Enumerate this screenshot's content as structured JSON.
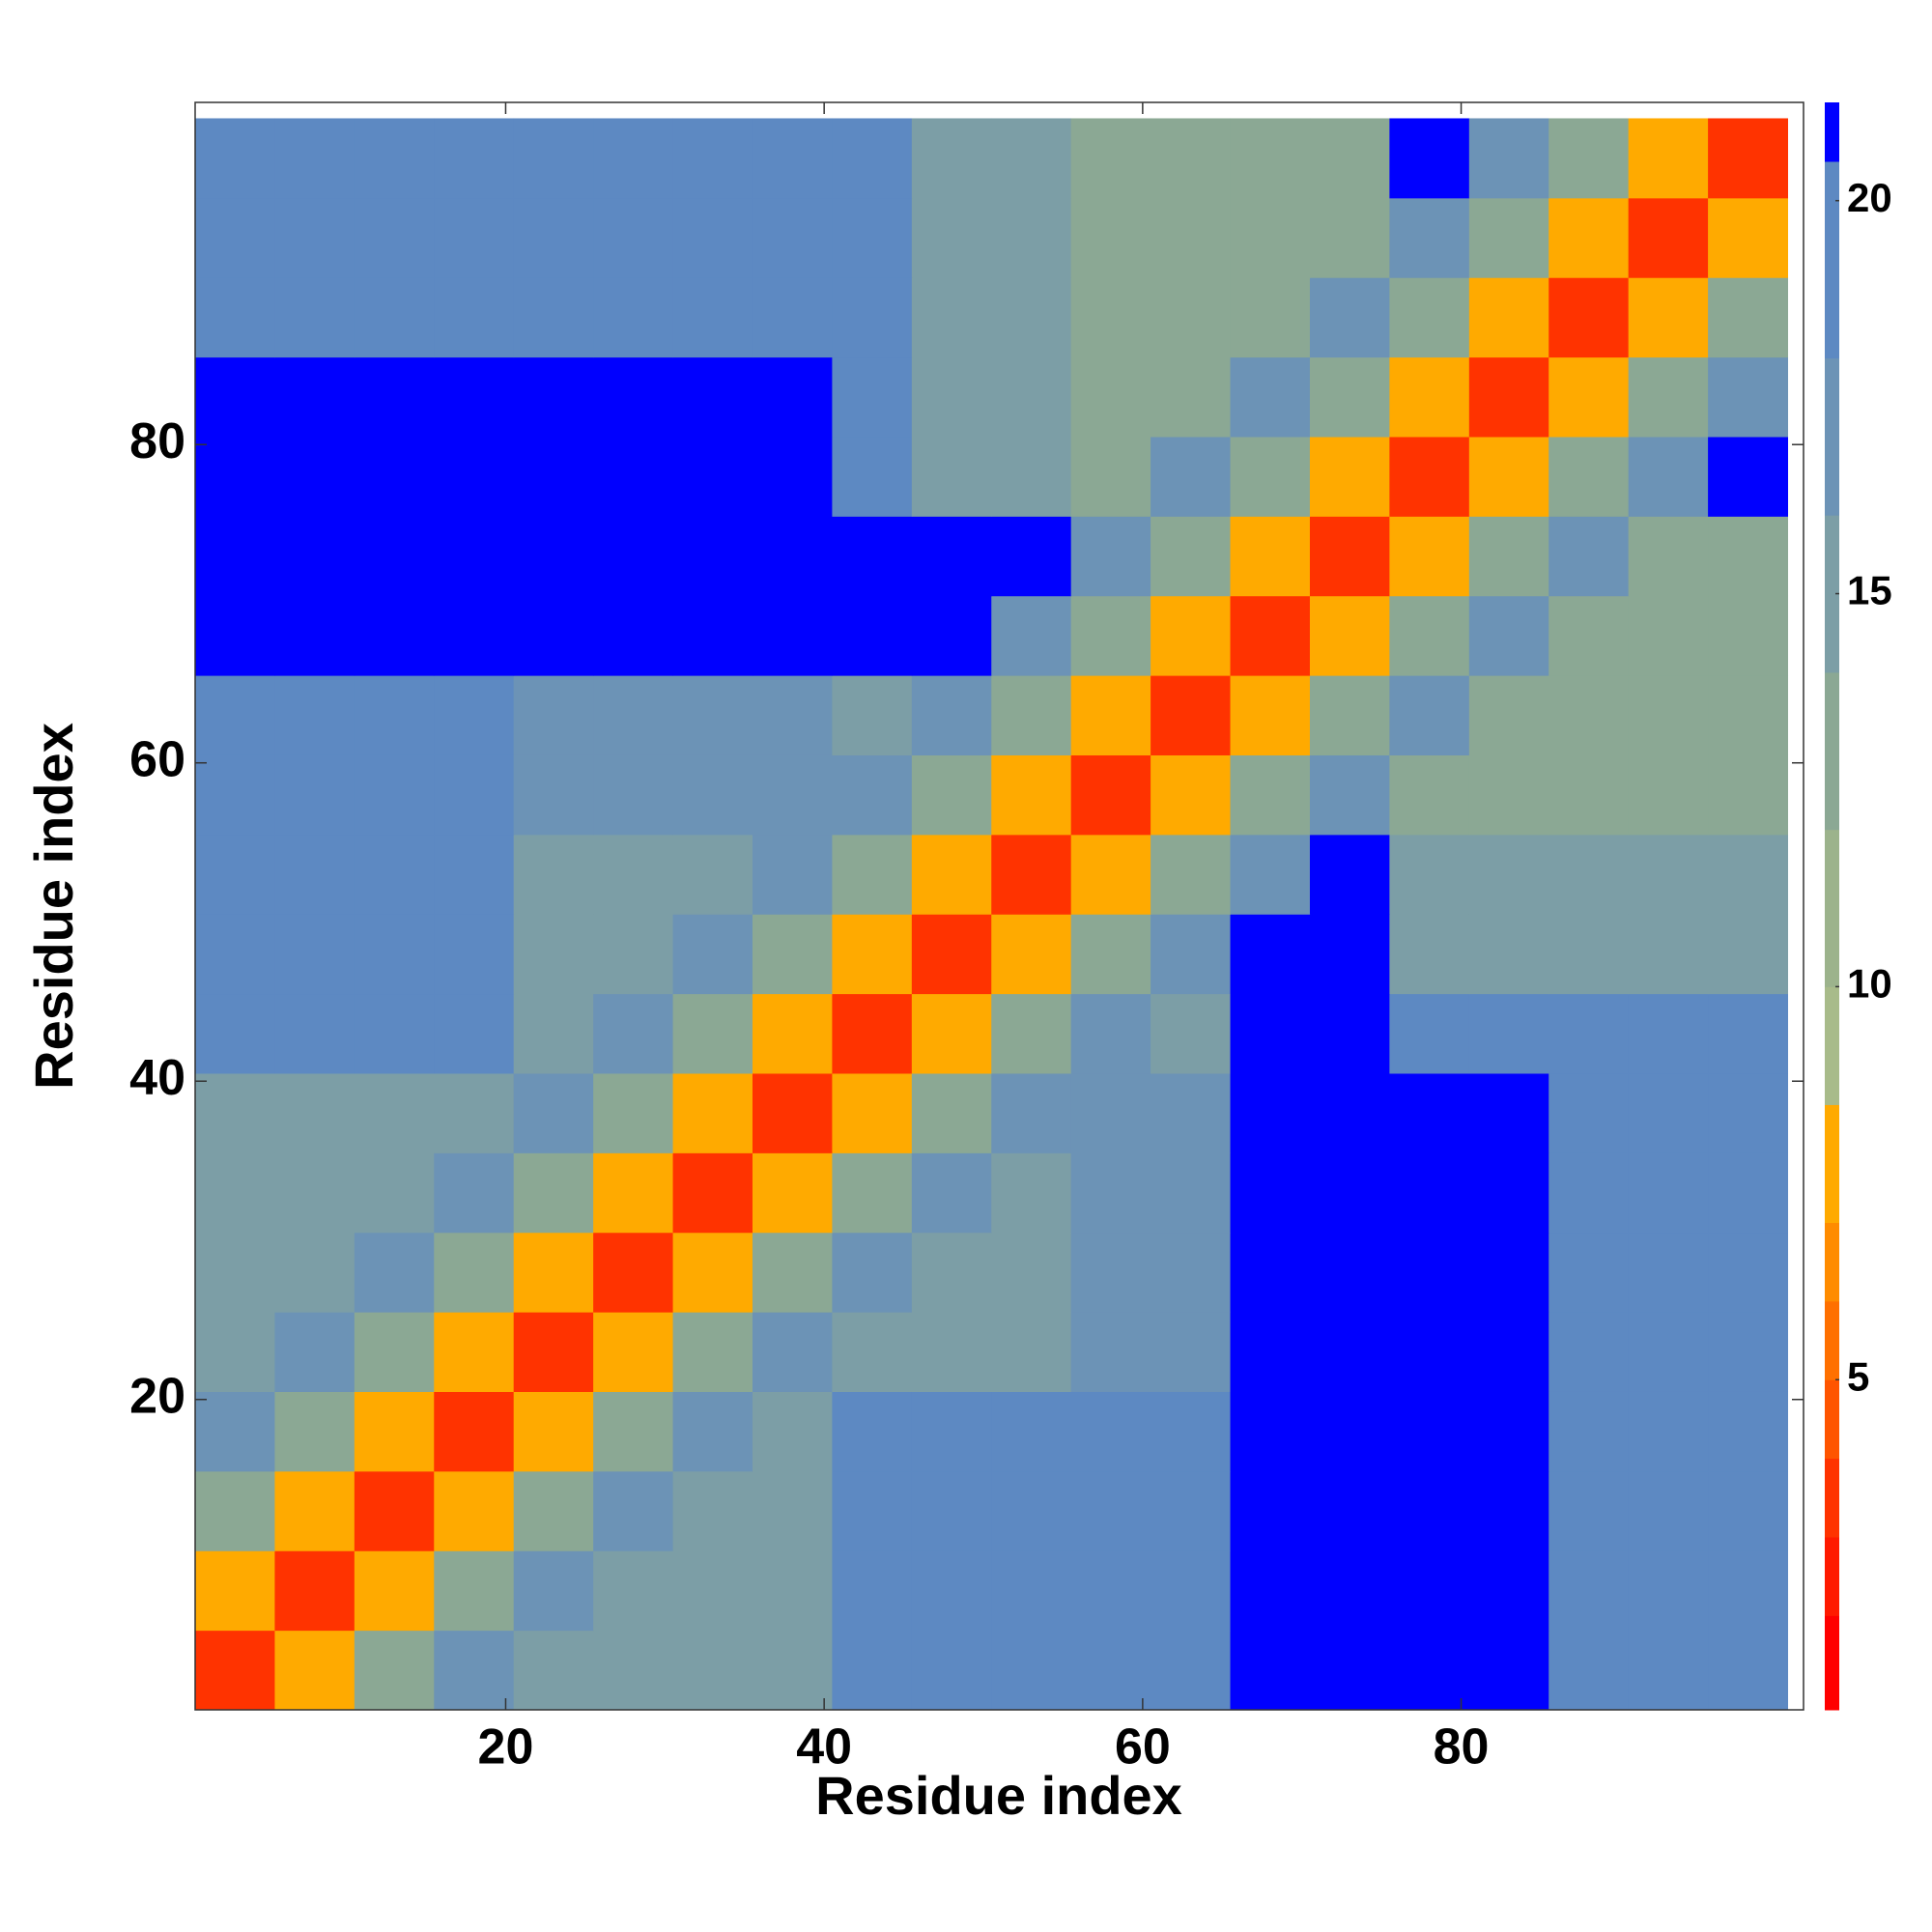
{
  "chart_data": {
    "type": "heatmap",
    "x_label": "Residue index",
    "y_label": "Residue index",
    "x": [
      3,
      8,
      13,
      18,
      23,
      28,
      33,
      38,
      43,
      48,
      53,
      58,
      63,
      68,
      73,
      78,
      83,
      88,
      93,
      98
    ],
    "y": [
      3,
      8,
      13,
      18,
      23,
      28,
      33,
      38,
      43,
      48,
      53,
      58,
      63,
      68,
      73,
      78,
      83,
      88,
      93,
      98
    ],
    "z": [
      [
        3,
        7,
        12,
        16,
        14,
        14,
        14,
        14,
        19,
        19,
        19,
        20,
        20,
        22,
        22,
        22,
        22,
        19,
        19,
        19
      ],
      [
        7,
        3,
        7,
        12,
        16,
        14,
        14,
        14,
        19,
        19,
        19,
        20,
        20,
        22,
        22,
        22,
        22,
        19,
        19,
        19
      ],
      [
        12,
        7,
        3,
        7,
        12,
        16,
        14,
        14,
        19,
        19,
        19,
        20,
        20,
        22,
        22,
        22,
        22,
        19,
        19,
        19
      ],
      [
        16,
        12,
        7,
        3,
        7,
        12,
        16,
        14,
        19,
        19,
        19,
        20,
        20,
        22,
        22,
        22,
        22,
        19,
        19,
        19
      ],
      [
        14,
        16,
        12,
        7,
        3,
        7,
        12,
        16,
        15,
        15,
        15,
        16,
        16,
        22,
        22,
        22,
        22,
        18,
        18,
        18
      ],
      [
        14,
        14,
        16,
        12,
        7,
        3,
        7,
        12,
        16,
        15,
        15,
        16,
        16,
        22,
        22,
        22,
        22,
        18,
        18,
        18
      ],
      [
        14,
        14,
        14,
        16,
        12,
        7,
        3,
        7,
        12,
        16,
        15,
        16,
        16,
        22,
        22,
        22,
        22,
        18,
        18,
        18
      ],
      [
        14,
        14,
        14,
        14,
        16,
        12,
        7,
        3,
        7,
        12,
        16,
        16,
        16,
        22,
        22,
        22,
        22,
        18,
        18,
        18
      ],
      [
        19,
        19,
        19,
        19,
        15,
        16,
        12,
        7,
        3,
        7,
        12,
        16,
        14,
        22,
        22,
        19,
        19,
        19,
        19,
        19
      ],
      [
        19,
        19,
        19,
        19,
        15,
        15,
        16,
        12,
        7,
        3,
        7,
        12,
        16,
        22,
        22,
        15,
        15,
        15,
        15,
        15
      ],
      [
        19,
        19,
        19,
        19,
        15,
        15,
        15,
        16,
        12,
        7,
        3,
        7,
        12,
        16,
        22,
        15,
        15,
        15,
        15,
        15
      ],
      [
        20,
        20,
        20,
        20,
        16,
        16,
        16,
        16,
        16,
        12,
        7,
        3,
        7,
        12,
        16,
        13,
        13,
        13,
        13,
        13
      ],
      [
        20,
        20,
        20,
        20,
        16,
        16,
        16,
        16,
        14,
        16,
        12,
        7,
        3,
        7,
        12,
        16,
        13,
        13,
        13,
        13
      ],
      [
        22,
        22,
        22,
        22,
        22,
        22,
        22,
        22,
        22,
        22,
        16,
        12,
        7,
        3,
        7,
        12,
        16,
        13,
        13,
        13
      ],
      [
        22,
        22,
        22,
        22,
        22,
        22,
        22,
        22,
        22,
        22,
        22,
        16,
        12,
        7,
        3,
        7,
        12,
        16,
        13,
        13
      ],
      [
        22,
        22,
        22,
        22,
        22,
        22,
        22,
        22,
        19,
        15,
        15,
        13,
        16,
        12,
        7,
        3,
        7,
        12,
        16,
        22
      ],
      [
        22,
        22,
        22,
        22,
        22,
        22,
        22,
        22,
        19,
        15,
        15,
        13,
        13,
        16,
        12,
        7,
        3,
        7,
        12,
        16
      ],
      [
        19,
        19,
        19,
        19,
        18,
        18,
        18,
        18,
        19,
        15,
        15,
        13,
        13,
        13,
        16,
        12,
        7,
        3,
        7,
        12
      ],
      [
        19,
        19,
        19,
        19,
        18,
        18,
        18,
        18,
        19,
        15,
        15,
        13,
        13,
        13,
        13,
        16,
        12,
        7,
        3,
        7
      ],
      [
        19,
        19,
        19,
        19,
        18,
        18,
        18,
        18,
        19,
        15,
        15,
        13,
        13,
        13,
        13,
        22,
        16,
        12,
        7,
        3
      ]
    ],
    "xlim": [
      0.5,
      101.5
    ],
    "ylim": [
      0.5,
      101.5
    ],
    "xticks": [
      20,
      40,
      60,
      80
    ],
    "yticks": [
      20,
      40,
      60,
      80
    ],
    "colorbar": {
      "zlim": [
        0.8,
        21.25
      ],
      "zticks": [
        5,
        10,
        15,
        20
      ],
      "levels": [
        2,
        3,
        4,
        5,
        6,
        7,
        8.5,
        10,
        12,
        14,
        16,
        18,
        20.5
      ],
      "colors": [
        "#ff0000",
        "#ff1a00",
        "#ff3300",
        "#ff5500",
        "#ff7000",
        "#ff8c00",
        "#ffaa00",
        "#a8bb8a",
        "#9cb38c",
        "#8ba894",
        "#7c9ea6",
        "#6c93b6",
        "#5d89c2",
        "#0000ff"
      ]
    }
  }
}
